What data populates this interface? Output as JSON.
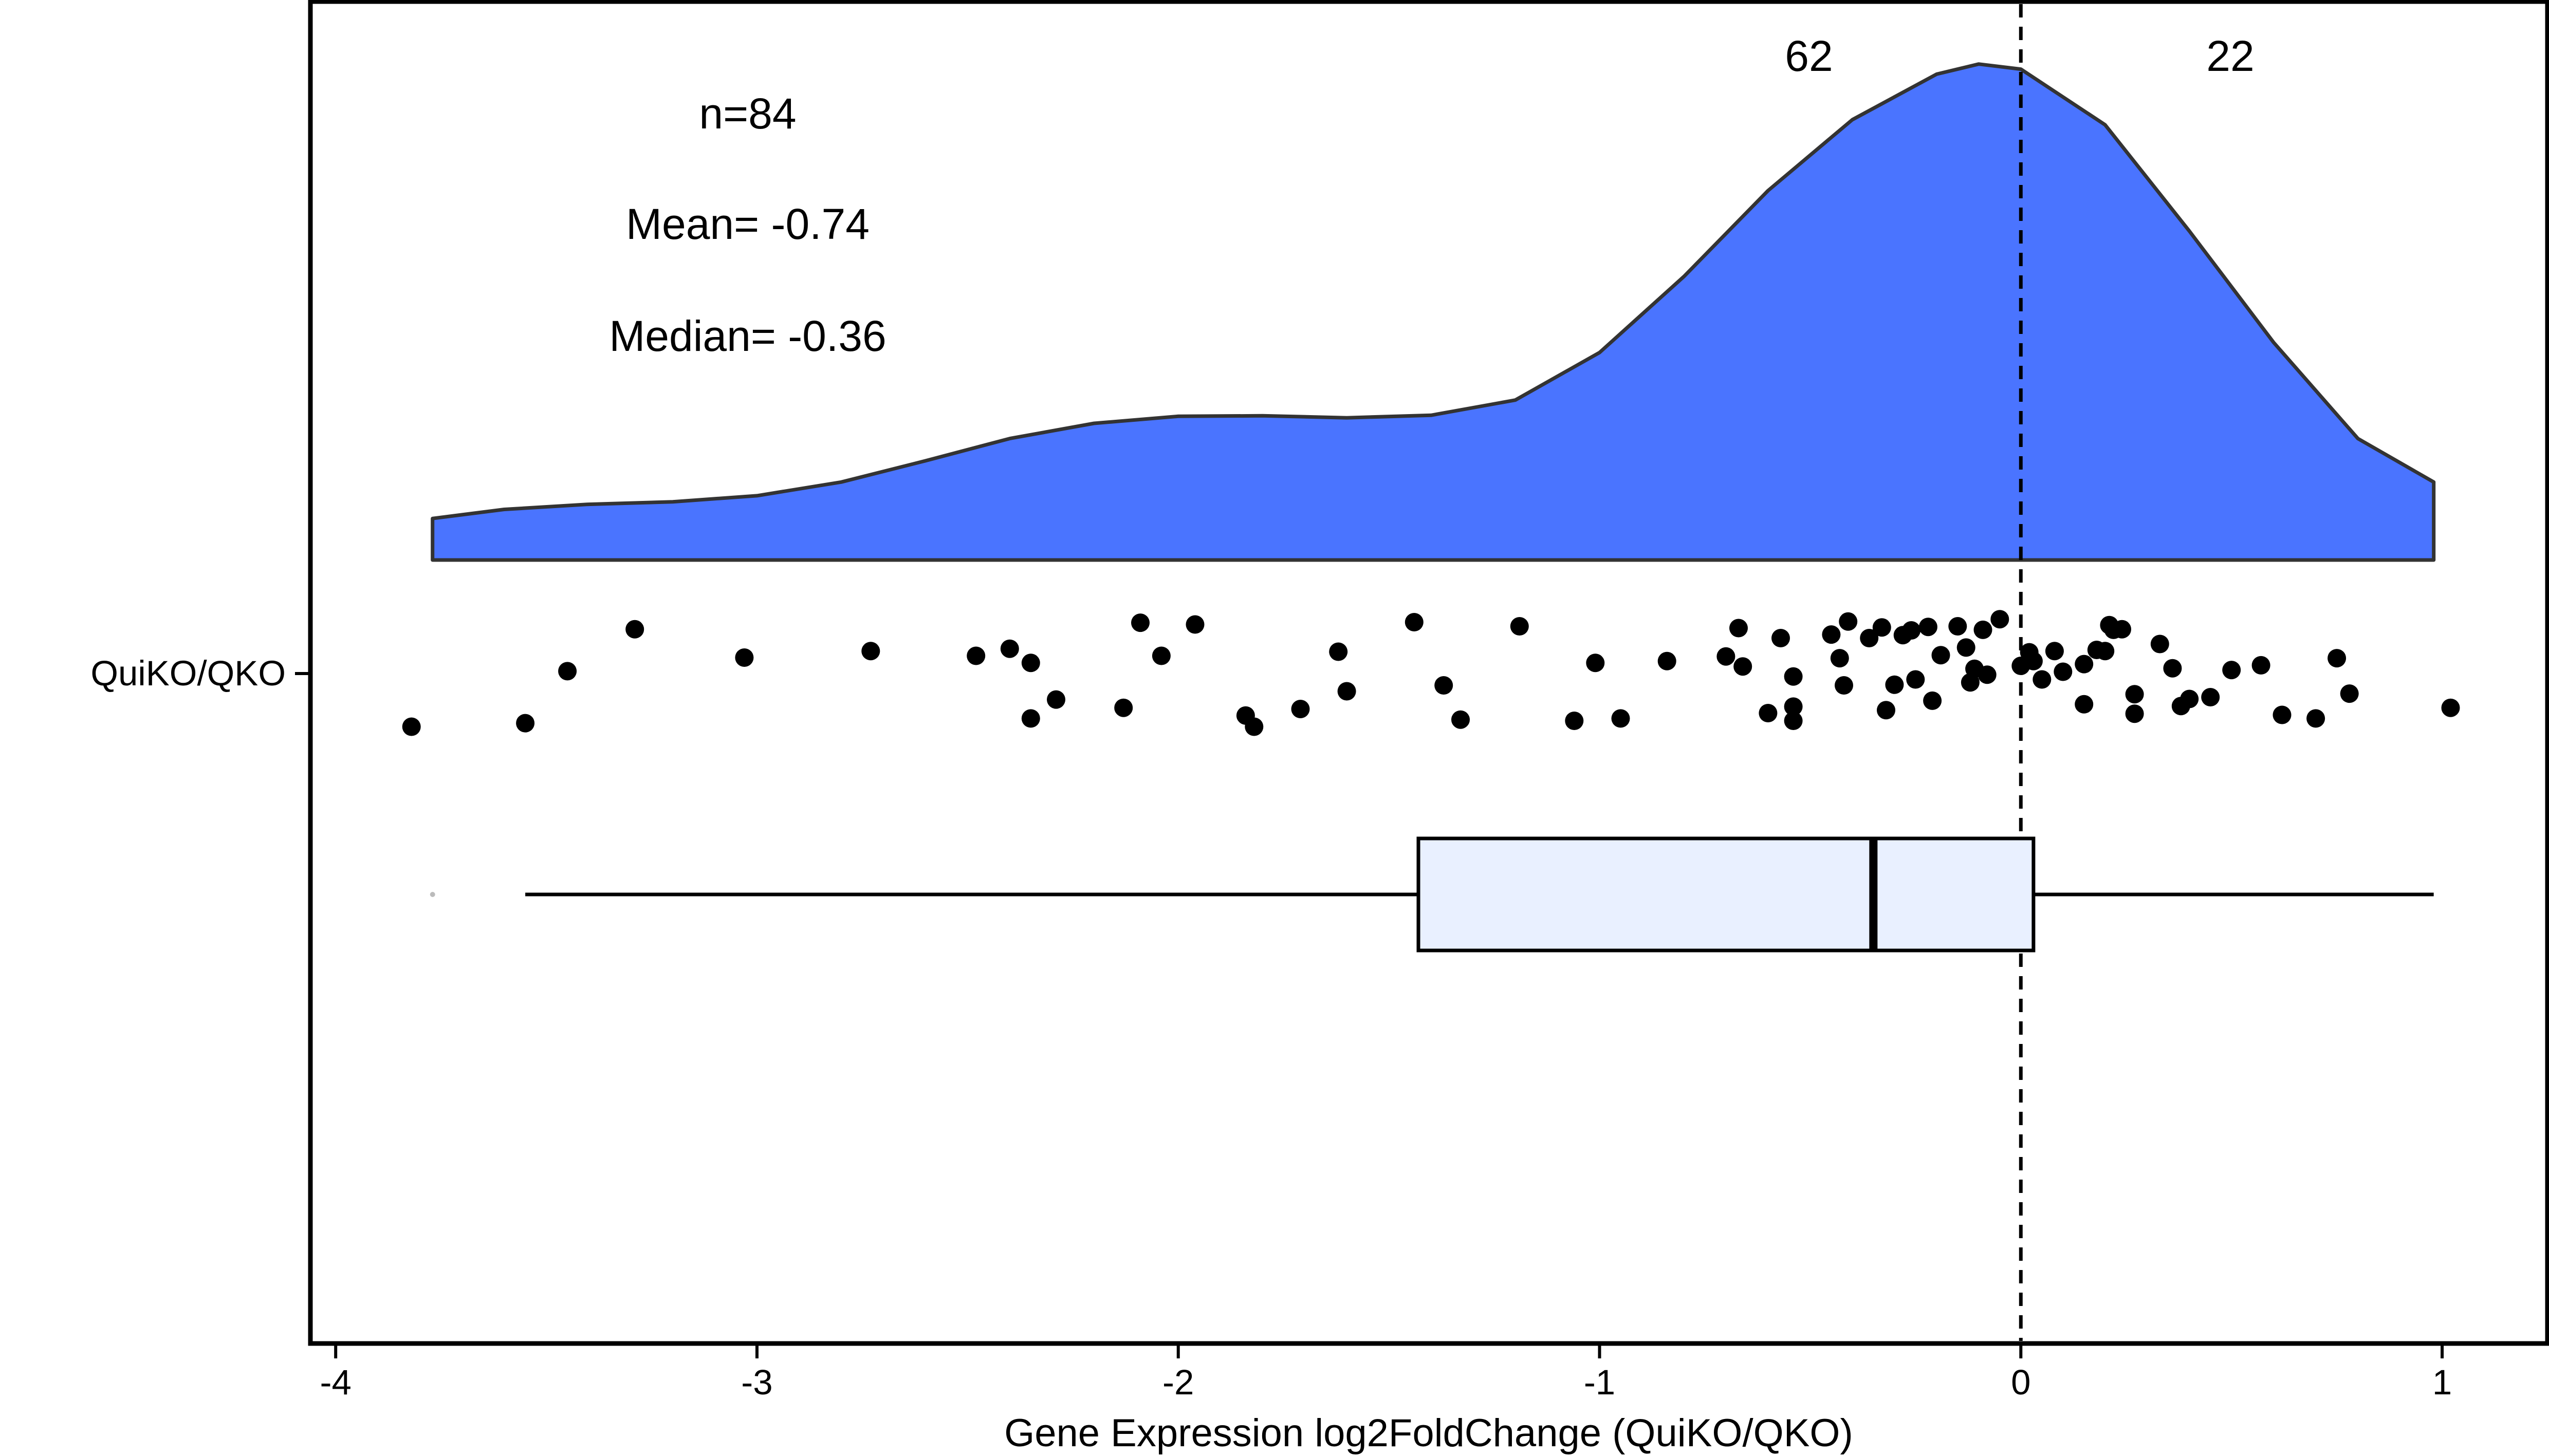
{
  "chart_data": {
    "type": "raincloud",
    "group": "QuiKO/QKO",
    "xlabel": "Gene Expression log2FoldChange (QuiKO/QKO)",
    "ylabel": "",
    "xlim": [
      -4.06,
      1.25
    ],
    "x_ticks": [
      -4,
      -3,
      -2,
      -1,
      0,
      1
    ],
    "x_tick_labels": [
      "-4",
      "-3",
      "-2",
      "-1",
      "0",
      "1"
    ],
    "reference_line_x": 0,
    "colors": {
      "density": "#4a74ff",
      "box": "#e9f0ff",
      "outline": "#333333"
    },
    "annotations": {
      "left_count": "62",
      "right_count": "22",
      "n": "n=84",
      "mean": "Mean= -0.74",
      "median": "Median= -0.36"
    },
    "stats": {
      "n": 84,
      "mean": -0.74,
      "median": -0.36
    },
    "box": {
      "q1": -1.43,
      "median": -0.35,
      "q3": 0.03,
      "whisker_low": -3.55,
      "whisker_high": 0.98,
      "outliers": [
        -3.77
      ]
    },
    "density": {
      "x": [
        -3.77,
        -3.6,
        -3.4,
        -3.2,
        -3.0,
        -2.8,
        -2.6,
        -2.4,
        -2.2,
        -2.0,
        -1.8,
        -1.6,
        -1.4,
        -1.2,
        -1.0,
        -0.8,
        -0.6,
        -0.4,
        -0.2,
        -0.1,
        0.0,
        0.2,
        0.4,
        0.6,
        0.8,
        0.98
      ],
      "y": [
        0.082,
        0.1,
        0.11,
        0.115,
        0.127,
        0.154,
        0.196,
        0.24,
        0.27,
        0.284,
        0.285,
        0.281,
        0.286,
        0.316,
        0.41,
        0.56,
        0.73,
        0.87,
        0.96,
        0.98,
        0.97,
        0.86,
        0.65,
        0.43,
        0.24,
        0.154
      ]
    },
    "points": [
      [
        -3.82,
        -0.9
      ],
      [
        -3.55,
        -0.84
      ],
      [
        -3.45,
        0.04
      ],
      [
        -3.29,
        0.75
      ],
      [
        -3.03,
        0.27
      ],
      [
        -2.73,
        0.38
      ],
      [
        -2.48,
        0.3
      ],
      [
        -2.4,
        0.42
      ],
      [
        -2.35,
        0.18
      ],
      [
        -2.35,
        -0.76
      ],
      [
        -2.29,
        -0.44
      ],
      [
        -2.13,
        -0.58
      ],
      [
        -2.09,
        0.86
      ],
      [
        -2.04,
        0.3
      ],
      [
        -1.96,
        0.83
      ],
      [
        -1.84,
        -0.71
      ],
      [
        -1.82,
        -0.9
      ],
      [
        -1.71,
        -0.6
      ],
      [
        -1.62,
        0.37
      ],
      [
        -1.6,
        -0.3
      ],
      [
        -1.44,
        0.87
      ],
      [
        -1.37,
        -0.2
      ],
      [
        -1.33,
        -0.78
      ],
      [
        -1.19,
        0.8
      ],
      [
        -1.06,
        -0.8
      ],
      [
        -1.01,
        0.18
      ],
      [
        -0.95,
        -0.76
      ],
      [
        -0.84,
        0.21
      ],
      [
        -0.7,
        0.29
      ],
      [
        -0.67,
        0.77
      ],
      [
        -0.66,
        0.12
      ],
      [
        -0.6,
        -0.67
      ],
      [
        -0.57,
        0.6
      ],
      [
        -0.54,
        -0.05
      ],
      [
        -0.54,
        -0.56
      ],
      [
        -0.54,
        -0.8
      ],
      [
        -0.45,
        0.66
      ],
      [
        -0.43,
        0.26
      ],
      [
        -0.42,
        -0.2
      ],
      [
        -0.41,
        0.88
      ],
      [
        -0.36,
        0.6
      ],
      [
        -0.33,
        0.78
      ],
      [
        -0.32,
        -0.62
      ],
      [
        -0.3,
        -0.19
      ],
      [
        -0.28,
        0.65
      ],
      [
        -0.26,
        0.73
      ],
      [
        -0.25,
        -0.1
      ],
      [
        -0.22,
        0.79
      ],
      [
        -0.21,
        -0.46
      ],
      [
        -0.19,
        0.31
      ],
      [
        -0.15,
        0.8
      ],
      [
        -0.13,
        0.44
      ],
      [
        -0.12,
        -0.15
      ],
      [
        -0.11,
        0.08
      ],
      [
        -0.09,
        0.74
      ],
      [
        -0.08,
        -0.02
      ],
      [
        -0.05,
        0.92
      ],
      [
        0.0,
        0.13
      ],
      [
        0.02,
        0.36
      ],
      [
        0.03,
        0.21
      ],
      [
        0.05,
        -0.1
      ],
      [
        0.08,
        0.38
      ],
      [
        0.1,
        0.03
      ],
      [
        0.15,
        -0.52
      ],
      [
        0.15,
        0.16
      ],
      [
        0.18,
        0.4
      ],
      [
        0.2,
        0.38
      ],
      [
        0.21,
        0.82
      ],
      [
        0.22,
        0.74
      ],
      [
        0.24,
        0.75
      ],
      [
        0.27,
        -0.35
      ],
      [
        0.27,
        -0.68
      ],
      [
        0.33,
        0.5
      ],
      [
        0.36,
        0.09
      ],
      [
        0.38,
        -0.55
      ],
      [
        0.4,
        -0.43
      ],
      [
        0.45,
        -0.4
      ],
      [
        0.5,
        0.06
      ],
      [
        0.57,
        0.14
      ],
      [
        0.62,
        -0.7
      ],
      [
        0.7,
        -0.76
      ],
      [
        0.75,
        0.26
      ],
      [
        0.78,
        -0.34
      ],
      [
        1.02,
        -0.58
      ]
    ]
  }
}
